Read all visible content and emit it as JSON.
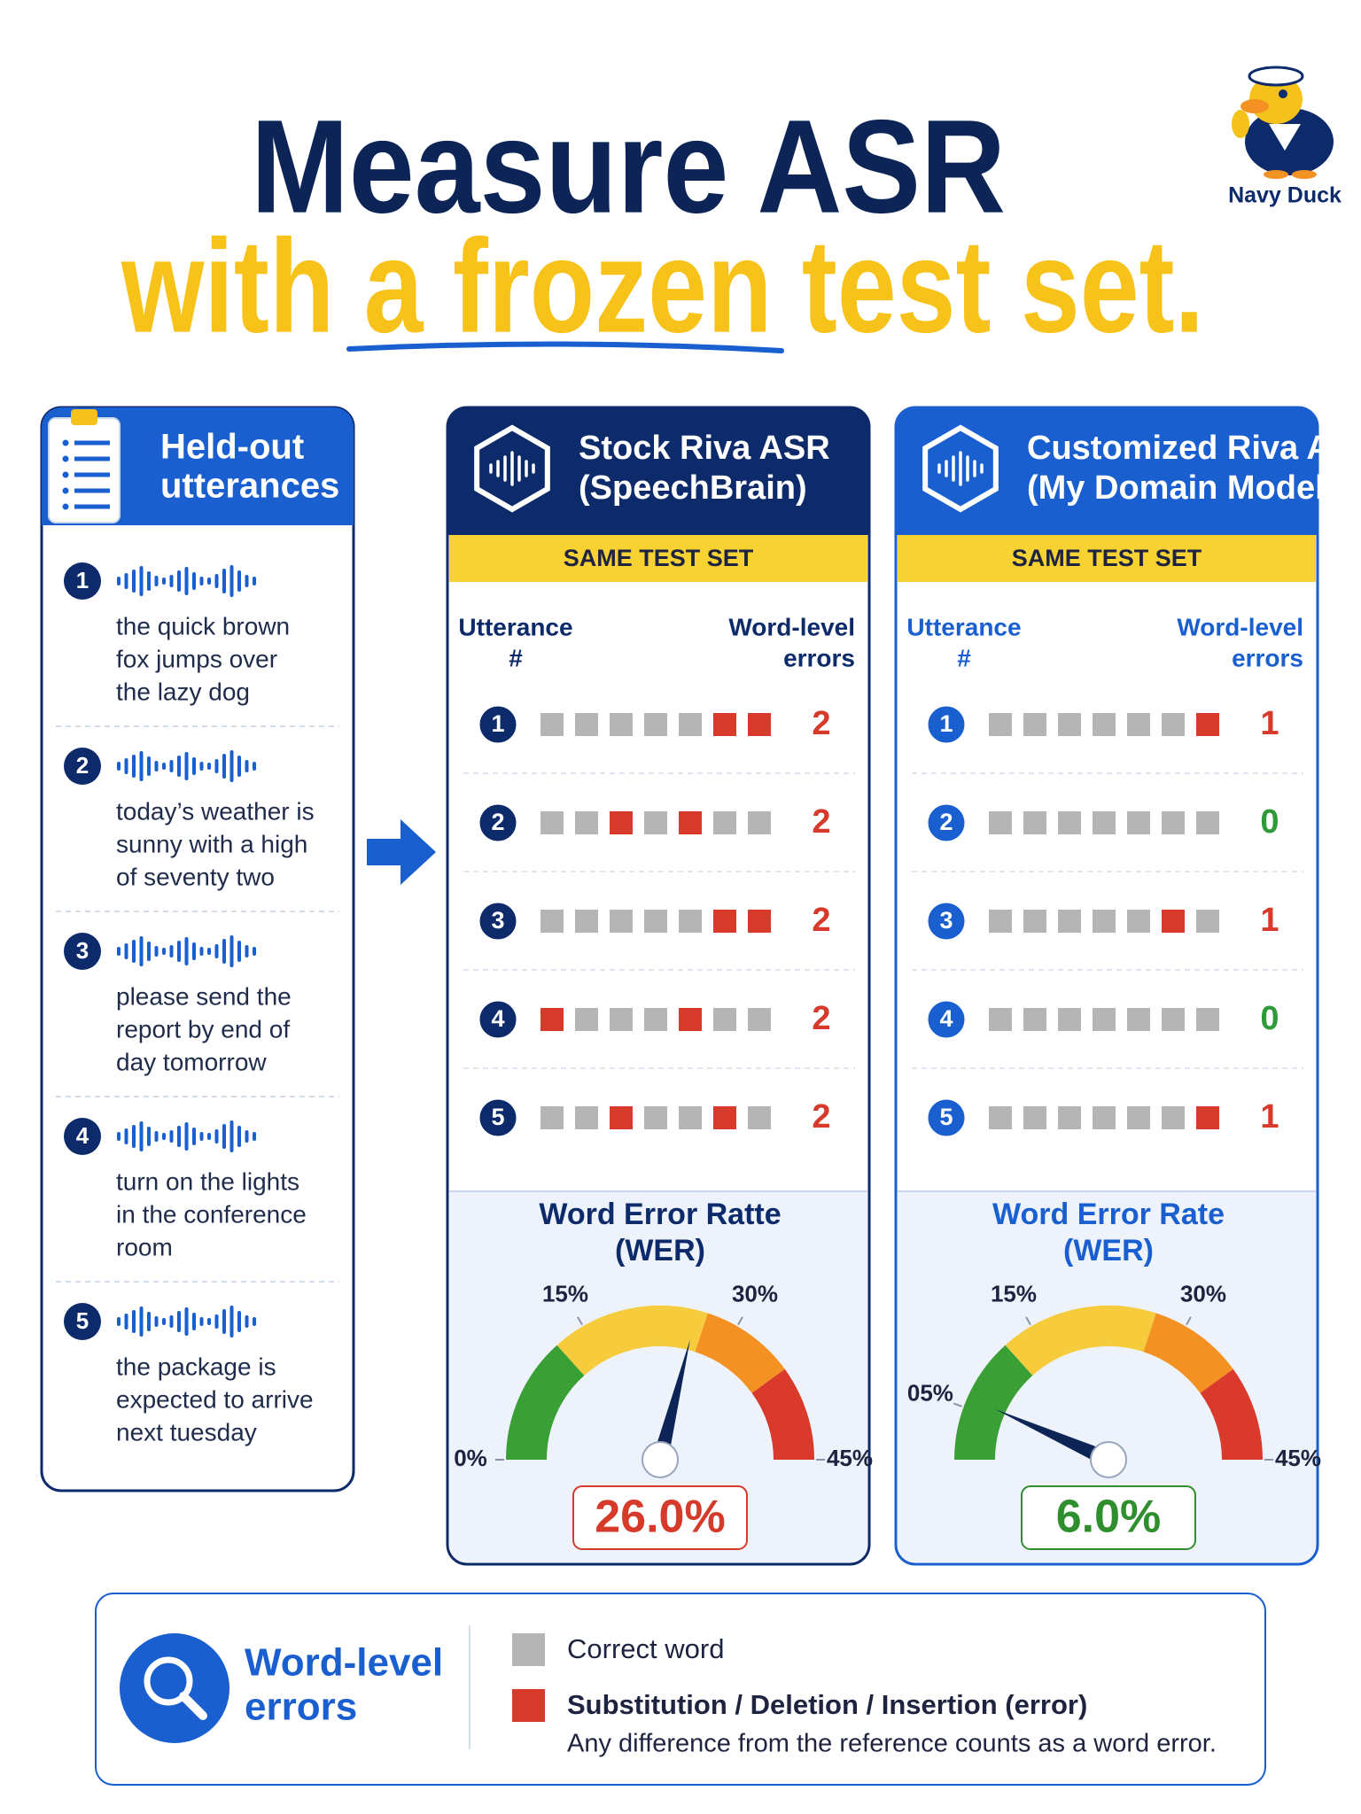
{
  "header": {
    "title_line1": "Measure ASR",
    "title_line2": "with a frozen test set.",
    "mascot": "Navy Duck"
  },
  "utterances": {
    "title": [
      "Held-out",
      "utterances"
    ],
    "items": [
      {
        "number": 1,
        "text": [
          "the quick brown",
          "fox jumps over",
          "the lazy dog"
        ]
      },
      {
        "number": 2,
        "text": [
          "today’s weather is",
          "sunny with a high",
          "of seventy two"
        ]
      },
      {
        "number": 3,
        "text": [
          "please send the",
          "report by end of",
          "day tomorrow"
        ]
      },
      {
        "number": 4,
        "text": [
          "turn on the lights",
          "in the conference",
          "room"
        ]
      },
      {
        "number": 5,
        "text": [
          "the package is",
          "expected to arrive",
          "next tuesday"
        ]
      }
    ]
  },
  "models": [
    {
      "title": [
        "Stock Riva ASR",
        "(SpeechBrain)"
      ],
      "theme": "#0d2a6b",
      "banner": "SAME TEST SET",
      "col_left": [
        "Utterance",
        "#"
      ],
      "col_right": [
        "Word-level",
        "errors"
      ],
      "rows": [
        {
          "number": 1,
          "words": [
            0,
            0,
            0,
            0,
            0,
            1,
            1
          ],
          "errors": 2
        },
        {
          "number": 2,
          "words": [
            0,
            0,
            1,
            0,
            1,
            0,
            0
          ],
          "errors": 2
        },
        {
          "number": 3,
          "words": [
            0,
            0,
            0,
            0,
            0,
            1,
            1
          ],
          "errors": 2
        },
        {
          "number": 4,
          "words": [
            1,
            0,
            0,
            0,
            1,
            0,
            0
          ],
          "errors": 2
        },
        {
          "number": 5,
          "words": [
            0,
            0,
            1,
            0,
            0,
            1,
            0
          ],
          "errors": 2
        }
      ],
      "wer_title": [
        "Word Error Ratte",
        "(WER)"
      ],
      "gauge": {
        "range": [
          0,
          45
        ],
        "ticks": [
          {
            "value": 0,
            "label": "0%"
          },
          {
            "value": 15,
            "label": "15%"
          },
          {
            "value": 30,
            "label": "30%"
          },
          {
            "value": 45,
            "label": "45%"
          }
        ],
        "bands": [
          {
            "from": 0,
            "to": 12,
            "color": "#3a9f34"
          },
          {
            "from": 12,
            "to": 27,
            "color": "#f6cb3c"
          },
          {
            "from": 27,
            "to": 36,
            "color": "#f39222"
          },
          {
            "from": 36,
            "to": 45,
            "color": "#d93a2b"
          }
        ]
      },
      "wer": 26,
      "wer_label": "26.0%",
      "wer_color": "#d63a2a"
    },
    {
      "title": [
        "Customized Riva ASR",
        "(My Domain Model)"
      ],
      "theme": "#1a5fd0",
      "banner": "SAME TEST SET",
      "col_left": [
        "Utterance",
        "#"
      ],
      "col_right": [
        "Word-level",
        "errors"
      ],
      "rows": [
        {
          "number": 1,
          "words": [
            0,
            0,
            0,
            0,
            0,
            0,
            1
          ],
          "errors": 1
        },
        {
          "number": 2,
          "words": [
            0,
            0,
            0,
            0,
            0,
            0,
            0
          ],
          "errors": 0
        },
        {
          "number": 3,
          "words": [
            0,
            0,
            0,
            0,
            0,
            1,
            0
          ],
          "errors": 1
        },
        {
          "number": 4,
          "words": [
            0,
            0,
            0,
            0,
            0,
            0,
            0
          ],
          "errors": 0
        },
        {
          "number": 5,
          "words": [
            0,
            0,
            0,
            0,
            0,
            0,
            1
          ],
          "errors": 1
        }
      ],
      "wer_title": [
        "Word Error Rate",
        "(WER)"
      ],
      "gauge": {
        "range": [
          0,
          45
        ],
        "ticks": [
          {
            "value": 5,
            "label": "05%"
          },
          {
            "value": 15,
            "label": "15%"
          },
          {
            "value": 30,
            "label": "30%"
          },
          {
            "value": 45,
            "label": "45%"
          }
        ],
        "bands": [
          {
            "from": 0,
            "to": 12,
            "color": "#3a9f34"
          },
          {
            "from": 12,
            "to": 27,
            "color": "#f6cb3c"
          },
          {
            "from": 27,
            "to": 36,
            "color": "#f39222"
          },
          {
            "from": 36,
            "to": 45,
            "color": "#d93a2b"
          }
        ]
      },
      "wer": 6,
      "wer_label": "6.0%",
      "wer_color": "#2f8f2e"
    }
  ],
  "legend": {
    "title": [
      "Word-level",
      "errors"
    ],
    "items": [
      {
        "color": "#b5b5b5",
        "label": "Correct word"
      },
      {
        "color": "#d63a2a",
        "label": "Substitution / Deletion / Insertion (error)",
        "note": "Any difference from the reference counts as a word error."
      }
    ]
  }
}
